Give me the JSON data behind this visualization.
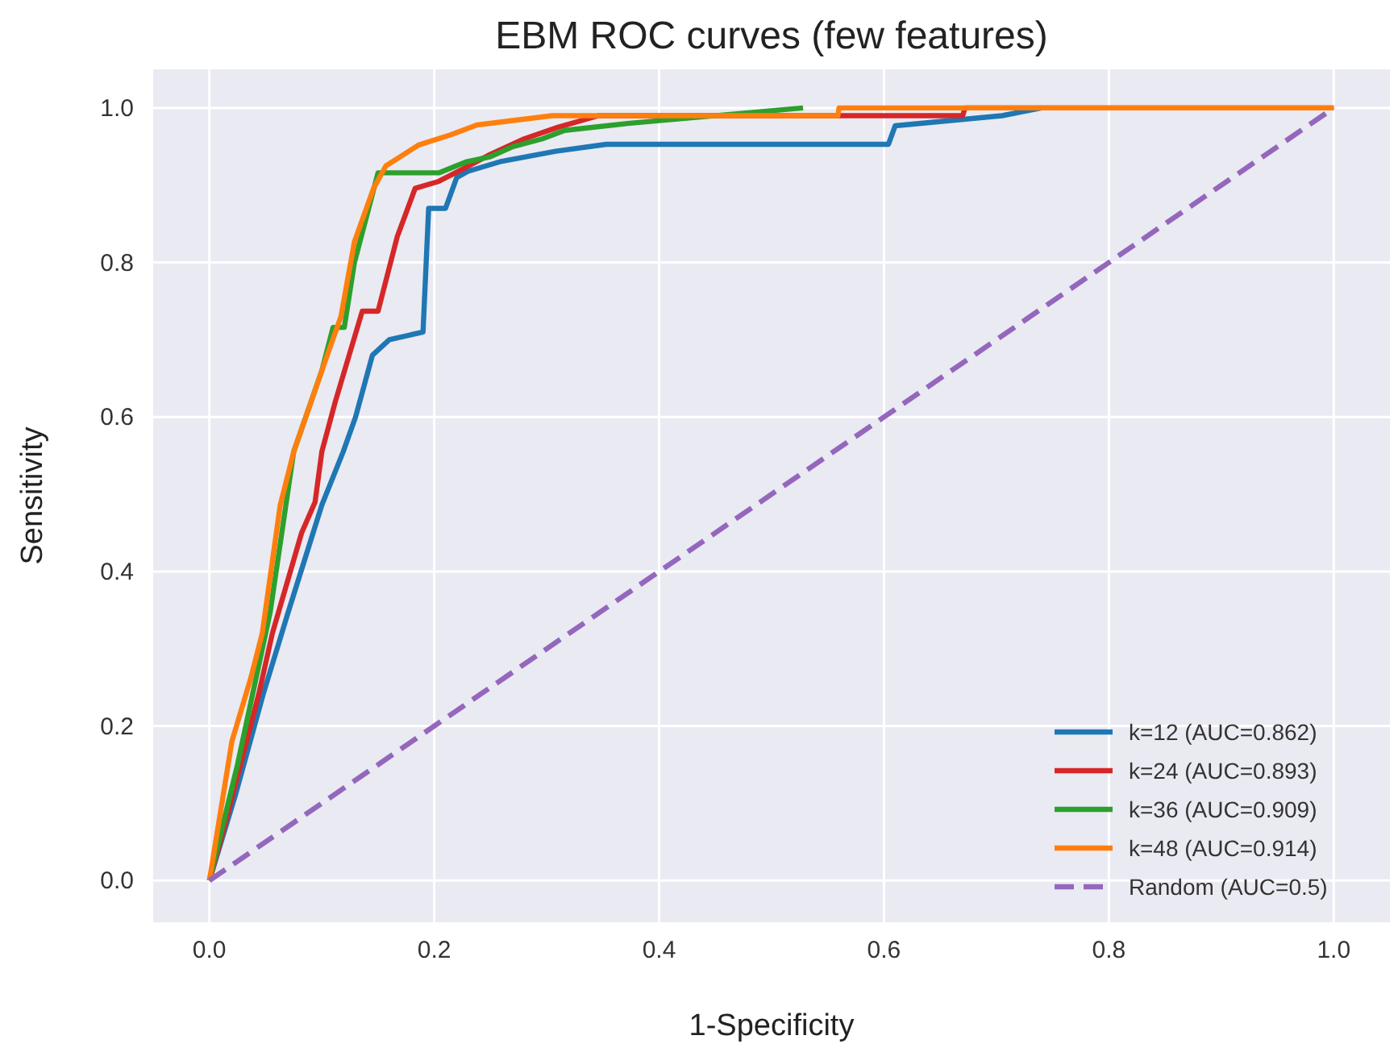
{
  "chart_data": {
    "type": "line",
    "title": "EBM ROC curves (few features)",
    "xlabel": "1-Specificity",
    "ylabel": "Sensitivity",
    "xlim": [
      -0.05,
      1.05
    ],
    "ylim": [
      -0.054,
      1.05
    ],
    "xticks": [
      {
        "value": 0,
        "label": "0.0"
      },
      0.2,
      0.4,
      0.6,
      0.8,
      {
        "value": 1,
        "label": "1.0"
      }
    ],
    "yticks": [
      {
        "value": 0,
        "label": "0.0"
      },
      0.2,
      0.4,
      0.6,
      0.8,
      {
        "value": 1,
        "label": "1.0"
      }
    ],
    "grid": true,
    "legend": "bottom right",
    "marker": "none",
    "series": [
      {
        "name": "k=12 (AUC=0.862)",
        "color": "#1f77b4",
        "x": [
          0,
          0.023,
          0.048,
          0.07,
          0.1,
          0.119,
          0.13,
          0.145,
          0.16,
          0.19,
          0.195,
          0.21,
          0.22,
          0.23,
          0.26,
          0.308,
          0.353,
          0.604,
          0.61,
          0.705,
          0.74
        ],
        "values": [
          0,
          0.11,
          0.242,
          0.347,
          0.486,
          0.555,
          0.6,
          0.68,
          0.7,
          0.71,
          0.87,
          0.87,
          0.91,
          0.918,
          0.931,
          0.944,
          0.953,
          0.953,
          0.977,
          0.99,
          1
        ]
      },
      {
        "name": "k=24 (AUC=0.893)",
        "color": "#d62728",
        "x": [
          0,
          0.013,
          0.044,
          0.056,
          0.082,
          0.094,
          0.1,
          0.112,
          0.136,
          0.15,
          0.167,
          0.183,
          0.204,
          0.224,
          0.25,
          0.28,
          0.31,
          0.346,
          0.67,
          0.672,
          1
        ],
        "values": [
          0,
          0.068,
          0.242,
          0.32,
          0.45,
          0.49,
          0.555,
          0.62,
          0.737,
          0.737,
          0.833,
          0.896,
          0.905,
          0.92,
          0.94,
          0.96,
          0.975,
          0.99,
          0.99,
          1,
          1
        ]
      },
      {
        "name": "k=36 (AUC=0.909)",
        "color": "#2ca02c",
        "x": [
          0,
          0.025,
          0.054,
          0.075,
          0.1,
          0.11,
          0.12,
          0.129,
          0.15,
          0.204,
          0.228,
          0.25,
          0.27,
          0.296,
          0.316,
          0.372,
          0.528
        ],
        "values": [
          0,
          0.15,
          0.347,
          0.555,
          0.66,
          0.716,
          0.716,
          0.8,
          0.916,
          0.916,
          0.93,
          0.937,
          0.95,
          0.96,
          0.971,
          0.98,
          1
        ]
      },
      {
        "name": "k=48 (AUC=0.914)",
        "color": "#ff7f0e",
        "x": [
          0,
          0.02,
          0.037,
          0.047,
          0.063,
          0.075,
          0.1,
          0.117,
          0.129,
          0.146,
          0.157,
          0.186,
          0.214,
          0.238,
          0.305,
          0.559,
          0.56,
          1
        ],
        "values": [
          0,
          0.18,
          0.263,
          0.32,
          0.486,
          0.555,
          0.66,
          0.73,
          0.827,
          0.896,
          0.925,
          0.952,
          0.965,
          0.978,
          0.99,
          0.99,
          1,
          1
        ]
      },
      {
        "name": "Random (AUC=0.5)",
        "color": "#9467bd",
        "line_style": "dashed",
        "x": [
          0,
          1
        ],
        "values": [
          0,
          1
        ]
      }
    ]
  }
}
